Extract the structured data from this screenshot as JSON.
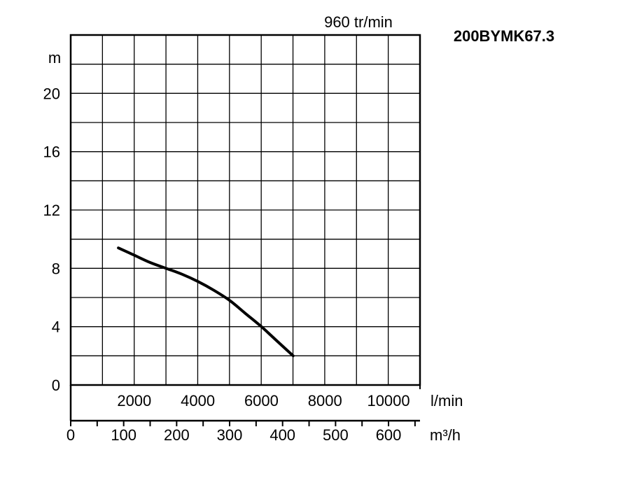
{
  "chart_data": {
    "type": "line",
    "title": "200BYMK67.3",
    "subtitle": "960 tr/min",
    "ylabel": "m",
    "ylim": [
      0,
      24
    ],
    "yticks": [
      0,
      4,
      8,
      12,
      16,
      20
    ],
    "x_lmin": {
      "unit": "l/min",
      "xlim": [
        0,
        10990
      ],
      "ticks": [
        "2000",
        "4000",
        "6000",
        "8000",
        "10000"
      ],
      "tick_values": [
        2000,
        4000,
        6000,
        8000,
        10000
      ]
    },
    "x_m3h": {
      "unit": "m³/h",
      "xlim": [
        0,
        659.4
      ],
      "ticks": [
        "0",
        "100",
        "200",
        "300",
        "400",
        "500",
        "600"
      ],
      "tick_values": [
        0,
        100,
        200,
        300,
        400,
        500,
        600
      ]
    },
    "grid": true,
    "series": [
      {
        "x": [
          90,
          120,
          150,
          180,
          210,
          240,
          270,
          300,
          330,
          360,
          390,
          420
        ],
        "y": [
          9.4,
          8.9,
          8.4,
          8.0,
          7.6,
          7.1,
          6.5,
          5.8,
          4.9,
          4.0,
          3.0,
          2.0
        ]
      }
    ],
    "colors": {
      "axis": "#000000",
      "grid": "#000000",
      "line": "#000000"
    }
  }
}
